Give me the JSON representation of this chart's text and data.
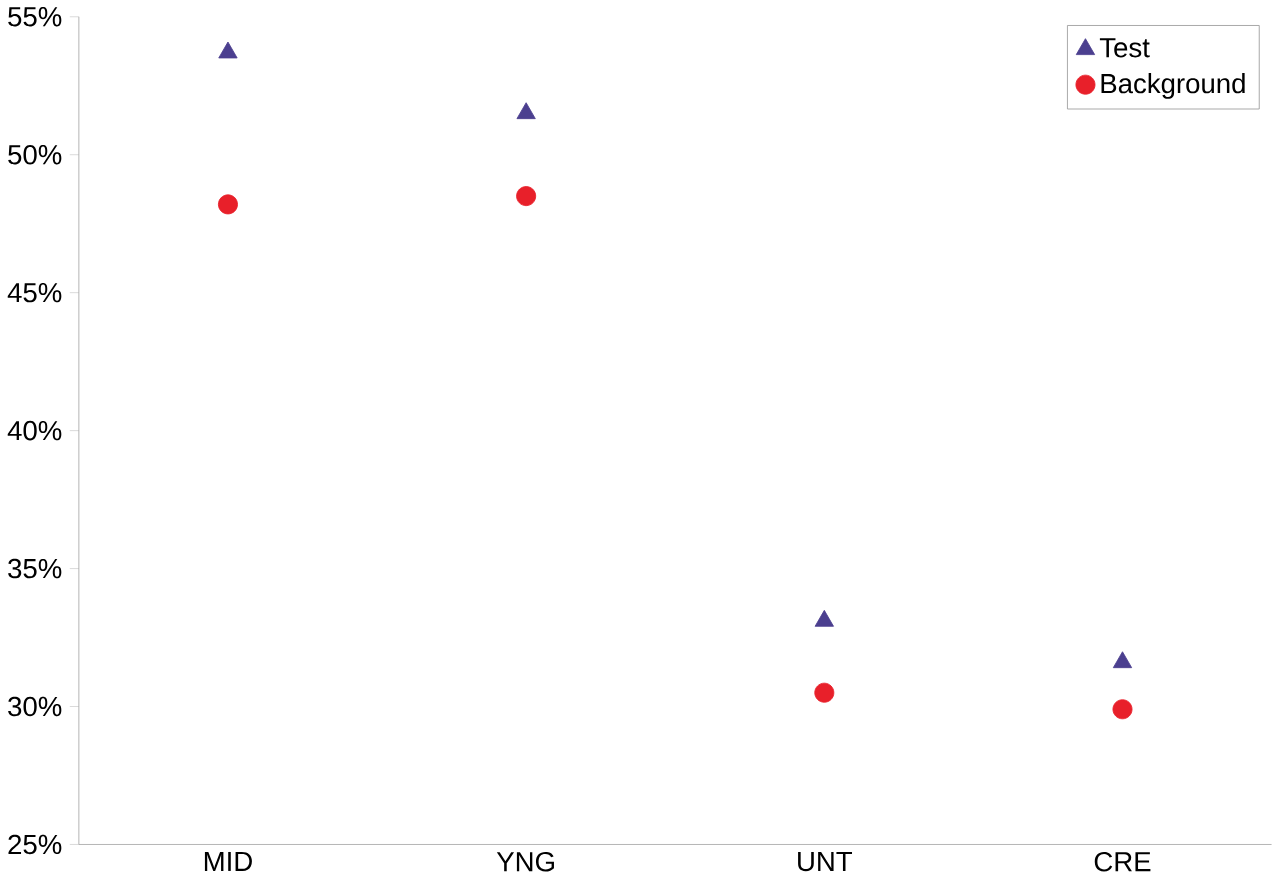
{
  "chart_data": {
    "type": "scatter",
    "categories": [
      "MID",
      "YNG",
      "UNT",
      "CRE"
    ],
    "series": [
      {
        "name": "Test",
        "color": "#4b3f8f",
        "marker": "triangle",
        "values": [
          53.7,
          51.5,
          33.1,
          31.6
        ]
      },
      {
        "name": "Background",
        "color": "#e8202a",
        "marker": "circle",
        "values": [
          48.2,
          48.5,
          30.5,
          29.9
        ]
      }
    ],
    "ylim": [
      25,
      55
    ],
    "yticks": [
      {
        "value": 25,
        "label": "25%"
      },
      {
        "value": 30,
        "label": "30%"
      },
      {
        "value": 35,
        "label": "35%"
      },
      {
        "value": 40,
        "label": "40%"
      },
      {
        "value": 45,
        "label": "45%"
      },
      {
        "value": 50,
        "label": "50%"
      },
      {
        "value": 55,
        "label": "55%"
      }
    ],
    "grid": false,
    "legend": "top right"
  }
}
